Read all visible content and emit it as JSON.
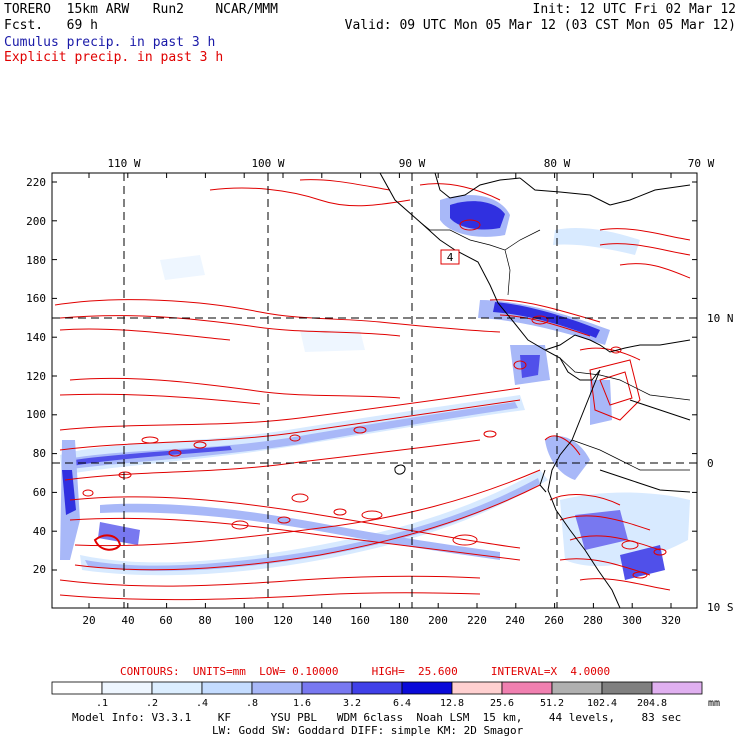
{
  "header": {
    "model_line": "TORERO  15km ARW   Run2    NCAR/MMM",
    "forecast_line": "Fcst.   69 h",
    "init": "Init: 12 UTC Fri 02 Mar 12",
    "valid": "Valid: 09 UTC Mon 05 Mar 12 (03 CST Mon 05 Mar 12)",
    "field1": "Cumulus precip. in past 3 h",
    "field2": "Explicit precip. in past 3 h",
    "field1_color": "#1a1aa8",
    "field2_color": "#e00000"
  },
  "map": {
    "lon_labels": [
      "110 W",
      "100 W",
      "90 W",
      "80 W",
      "70 W"
    ],
    "lat_labels": [
      "10 N",
      "0",
      "10 S"
    ],
    "y_ticks": [
      "220",
      "200",
      "180",
      "160",
      "140",
      "120",
      "100",
      "80",
      "60",
      "40",
      "20"
    ],
    "x_ticks": [
      "20",
      "40",
      "60",
      "80",
      "100",
      "120",
      "140",
      "160",
      "180",
      "200",
      "220",
      "240",
      "260",
      "280",
      "300",
      "320"
    ],
    "marker_label": "4"
  },
  "contours": {
    "label": "CONTOURS:  UNITS=mm  LOW= 0.10000     HIGH=  25.600     INTERVAL=X  4.0000",
    "color": "#e00000"
  },
  "colorbar": {
    "ticks": [
      ".1",
      ".2",
      ".4",
      ".8",
      "1.6",
      "3.2",
      "6.4",
      "12.8",
      "25.6",
      "51.2",
      "102.4",
      "204.8"
    ],
    "unit": "mm",
    "colors": [
      "#ffffff",
      "#eef6ff",
      "#dceeff",
      "#c4dcff",
      "#a8b8f8",
      "#7878f0",
      "#4040e8",
      "#0a0ad8",
      "#ffd0d0",
      "#f080b0",
      "#b0b0b0",
      "#808080",
      "#e0b0f0"
    ]
  },
  "footer": {
    "line1": "Model Info: V3.3.1    KF      YSU PBL   WDM 6class  Noah LSM  15 km,    44 levels,    83 sec",
    "line2": "LW: Godd SW: Goddard DIFF: simple KM: 2D Smagor"
  }
}
